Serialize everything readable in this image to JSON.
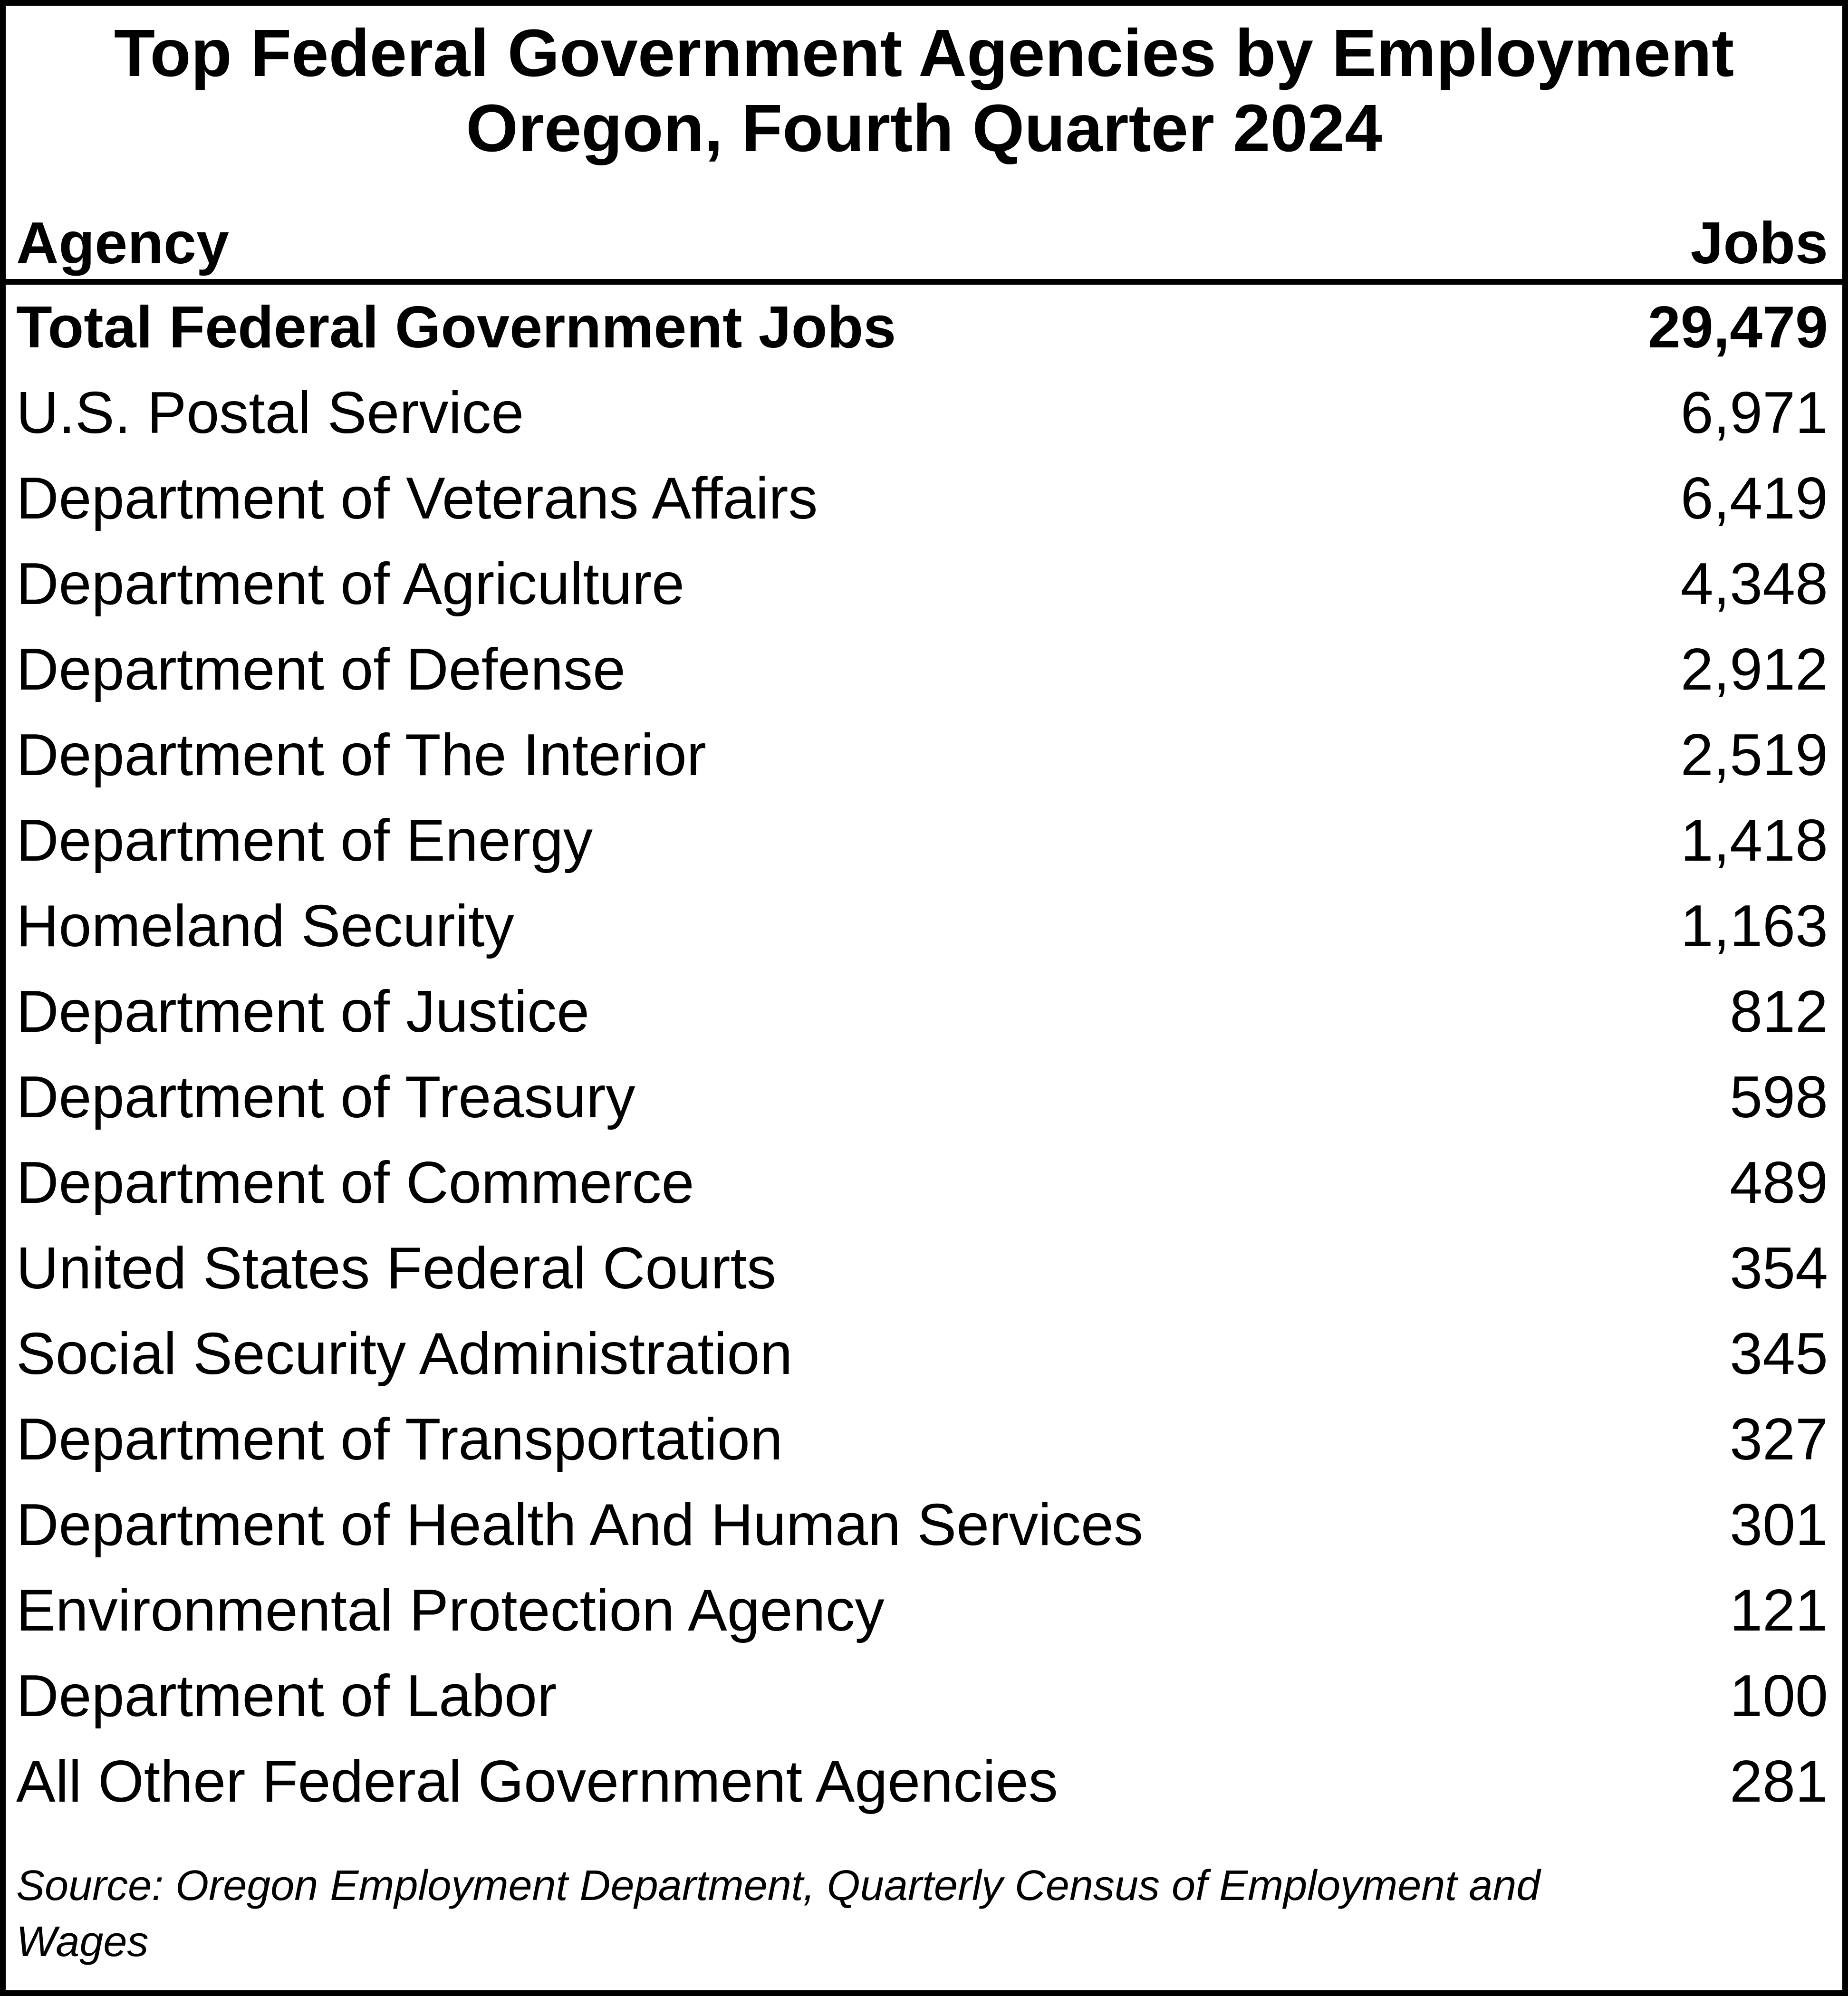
{
  "title": {
    "line1": "Top Federal Government Agencies by Employment",
    "line2": "Oregon, Fourth Quarter 2024"
  },
  "header": {
    "agency": "Agency",
    "jobs": "Jobs"
  },
  "rows": [
    {
      "agency": "Total Federal Government Jobs",
      "jobs": "29,479",
      "total": true
    },
    {
      "agency": "U.S. Postal Service",
      "jobs": "6,971",
      "total": false
    },
    {
      "agency": "Department of Veterans Affairs",
      "jobs": "6,419",
      "total": false
    },
    {
      "agency": "Department of Agriculture",
      "jobs": "4,348",
      "total": false
    },
    {
      "agency": "Department of Defense",
      "jobs": "2,912",
      "total": false
    },
    {
      "agency": "Department of The Interior",
      "jobs": "2,519",
      "total": false
    },
    {
      "agency": "Department of Energy",
      "jobs": "1,418",
      "total": false
    },
    {
      "agency": "Homeland Security",
      "jobs": "1,163",
      "total": false
    },
    {
      "agency": "Department of Justice",
      "jobs": "812",
      "total": false
    },
    {
      "agency": "Department of Treasury",
      "jobs": "598",
      "total": false
    },
    {
      "agency": "Department of Commerce",
      "jobs": "489",
      "total": false
    },
    {
      "agency": "United States Federal Courts",
      "jobs": "354",
      "total": false
    },
    {
      "agency": "Social Security Administration",
      "jobs": "345",
      "total": false
    },
    {
      "agency": "Department of Transportation",
      "jobs": "327",
      "total": false
    },
    {
      "agency": "Department of Health And Human Services",
      "jobs": "301",
      "total": false
    },
    {
      "agency": "Environmental Protection Agency",
      "jobs": "121",
      "total": false
    },
    {
      "agency": "Department of Labor",
      "jobs": "100",
      "total": false
    },
    {
      "agency": "All Other Federal Government Agencies",
      "jobs": "281",
      "total": false
    }
  ],
  "source": {
    "full": "Source: Oregon Employment Department, Quarterly Census of Employment and Wages",
    "lines": [
      "Source: Oregon Employment Department, Quarterly Census of Employment and",
      "Wages"
    ]
  },
  "colors": {
    "text": "#000000",
    "background": "#ffffff",
    "border": "#000000"
  },
  "chart_data": {
    "type": "table",
    "title": "Top Federal Government Agencies by Employment",
    "subtitle": "Oregon, Fourth Quarter 2024",
    "columns": [
      "Agency",
      "Jobs"
    ],
    "categories": [
      "Total Federal Government Jobs",
      "U.S. Postal Service",
      "Department of Veterans Affairs",
      "Department of Agriculture",
      "Department of Defense",
      "Department of The Interior",
      "Department of Energy",
      "Homeland Security",
      "Department of Justice",
      "Department of Treasury",
      "Department of Commerce",
      "United States Federal Courts",
      "Social Security Administration",
      "Department of Transportation",
      "Department of Health And Human Services",
      "Environmental Protection Agency",
      "Department of Labor",
      "All Other Federal Government Agencies"
    ],
    "values": [
      29479,
      6971,
      6419,
      4348,
      2912,
      2519,
      1418,
      1163,
      812,
      598,
      489,
      354,
      345,
      327,
      301,
      121,
      100,
      281
    ],
    "source": "Source: Oregon Employment Department, Quarterly Census of Employment and Wages"
  }
}
